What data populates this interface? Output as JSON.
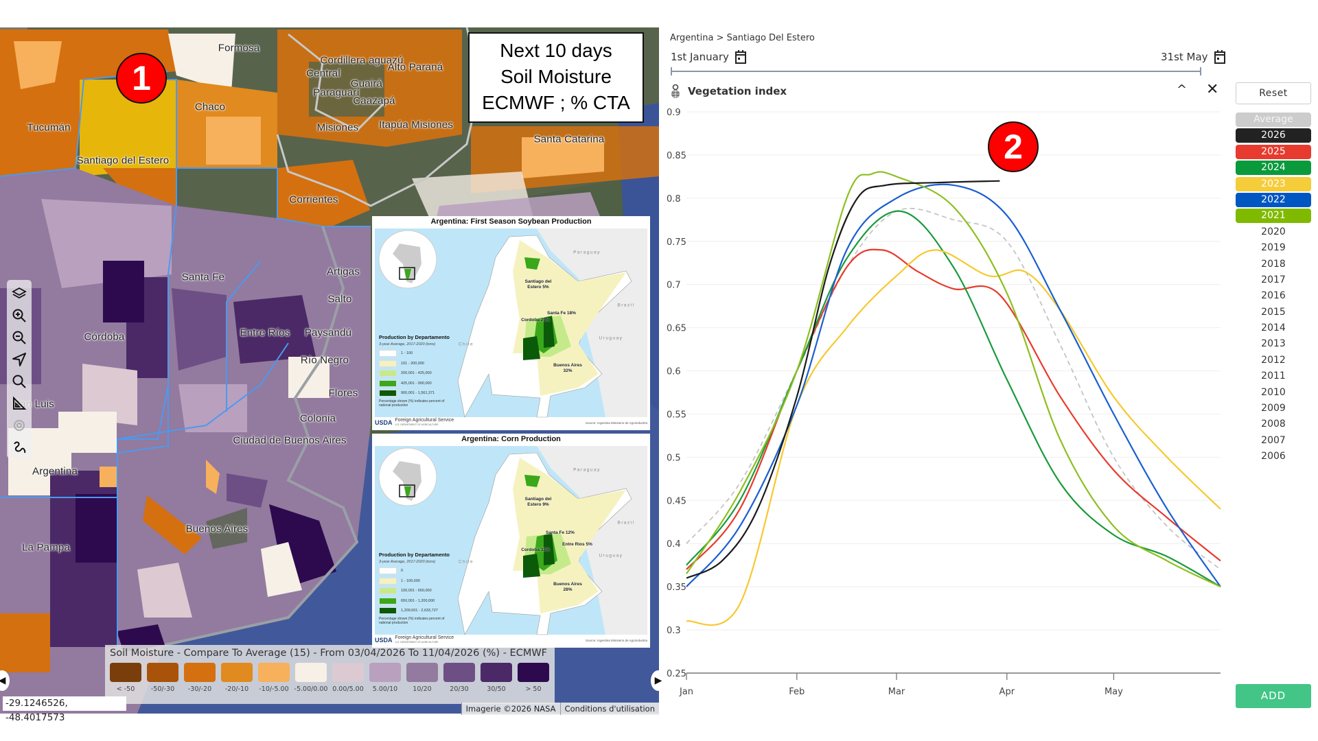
{
  "map": {
    "info_box": [
      "Next 10 days",
      "Soil Moisture",
      "ECMWF ; % CTA"
    ],
    "badge": "1",
    "labels": [
      "Formosa",
      "Cordillera aguazú",
      "Alto Paraná",
      "Central",
      "Guairá",
      "Paraguarí",
      "Caazapá",
      "Chaco",
      "Misiones",
      "Itapúa Misiones",
      "Tucumán",
      "Santa Catarina",
      "Santiago del Estero",
      "Corrientes",
      "Santa Fe",
      "Artigas",
      "Salto",
      "Córdoba",
      "Entre Ríos",
      "Paysandú",
      "Río Negro",
      "Flores",
      "Colonia",
      "Ciudad de Buenos Aires",
      "San Luis",
      "Argentina",
      "La Pampa",
      "Buenos Aires"
    ],
    "legend": {
      "title": "Soil Moisture - Compare To Average (15) - From 03/04/2026 To 11/04/2026 (%) - ECMWF",
      "classes": [
        {
          "label": "< -50",
          "color": "#7a3e0c"
        },
        {
          "label": "-50/-30",
          "color": "#a9530a"
        },
        {
          "label": "-30/-20",
          "color": "#d4700f"
        },
        {
          "label": "-20/-10",
          "color": "#e08a1f"
        },
        {
          "label": "-10/-5.00",
          "color": "#f7b05c"
        },
        {
          "label": "-5.00/0.00",
          "color": "#f7f0e6"
        },
        {
          "label": "0.00/5.00",
          "color": "#dcc9d2"
        },
        {
          "label": "5.00/10",
          "color": "#b9a0bf"
        },
        {
          "label": "10/20",
          "color": "#937a9f"
        },
        {
          "label": "20/30",
          "color": "#6e4f85"
        },
        {
          "label": "30/50",
          "color": "#4a2966"
        },
        {
          "label": "> 50",
          "color": "#2d0a4e"
        }
      ]
    },
    "coordinates": "-29.1246526, -48.4017573",
    "attribution": [
      "Imagerie ©2026 NASA",
      "Conditions d'utilisation"
    ],
    "insets": [
      {
        "title": "Argentina: First Season Soybean Production",
        "countries": [
          "Paraguay",
          "Brazil",
          "Uruguay",
          "Chile"
        ],
        "provinces": [
          "Santiago del Estero 5%",
          "Santa Fe 18%",
          "Cordoba 29%",
          "Buenos Aires 32%"
        ],
        "legend_title": "Production by Departamento",
        "legend_subtitle": "3-year Average, 2017-2020 (tons)",
        "classes": [
          {
            "label": "1 - 100",
            "color": "#ffffff"
          },
          {
            "label": "101 - 200,000",
            "color": "#f5f2c0"
          },
          {
            "label": "200,001 - 425,000",
            "color": "#c5ea8a"
          },
          {
            "label": "425,001 - 900,000",
            "color": "#3aa81a"
          },
          {
            "label": "900,001 - 1,561,371",
            "color": "#0a5a0a"
          }
        ],
        "note": "Percentage shown (%) indicates percent of national production",
        "usda": "USDA",
        "agency": "Foreign Agricultural Service",
        "department": "U.S. DEPARTMENT OF AGRICULTURE",
        "source": "Source: Argentina Ministerio de Agroindustria"
      },
      {
        "title": "Argentina: Corn Production",
        "countries": [
          "Paraguay",
          "Brazil",
          "Uruguay",
          "Chile"
        ],
        "provinces": [
          "Santiago del Estero 9%",
          "Santa Fe 12%",
          "Entre Rios 5%",
          "Cordoba 32%",
          "Buenos Aires 28%"
        ],
        "legend_title": "Production by Departamento",
        "legend_subtitle": "3-year Average, 2017-2020 (tons)",
        "classes": [
          {
            "label": "0",
            "color": "#ffffff"
          },
          {
            "label": "1 - 100,000",
            "color": "#f5f2c0"
          },
          {
            "label": "100,001 - 650,000",
            "color": "#c5ea8a"
          },
          {
            "label": "650,001 - 1,200,000",
            "color": "#3aa81a"
          },
          {
            "label": "1,200,001 - 2,633,727",
            "color": "#0a5a0a"
          }
        ],
        "note": "Percentage shown (%) indicates percent of national production",
        "usda": "USDA",
        "agency": "Foreign Agricultural Service",
        "department": "U.S. DEPARTMENT OF AGRICULTURE",
        "source": "Source: Argentina Ministerio de Agroindustria"
      }
    ]
  },
  "panel": {
    "breadcrumb": "Argentina > Santiago Del Estero",
    "start_date": "1st January",
    "end_date": "31st May",
    "title": "Vegetation index",
    "reset": "Reset",
    "add": "ADD",
    "badge": "2"
  },
  "chart_data": {
    "type": "line",
    "title": "Vegetation index",
    "xlabel": "",
    "ylabel": "",
    "x_unit": "day of year",
    "xlim": [
      0,
      150
    ],
    "ylim": [
      0.25,
      0.9
    ],
    "yticks": [
      0.9,
      0.85,
      0.8,
      0.75,
      0.7,
      0.65,
      0.6,
      0.55,
      0.5,
      0.45,
      0.4,
      0.35,
      0.3,
      0.25
    ],
    "xticks": [
      {
        "label": "Jan",
        "day": 0
      },
      {
        "label": "Feb",
        "day": 31
      },
      {
        "label": "Mar",
        "day": 59
      },
      {
        "label": "Apr",
        "day": 90
      },
      {
        "label": "May",
        "day": 120
      }
    ],
    "legend": [
      {
        "label": "Average",
        "color": "#cccccc",
        "active": true
      },
      {
        "label": "2026",
        "color": "#222222",
        "active": true
      },
      {
        "label": "2025",
        "color": "#e63b2e",
        "active": true
      },
      {
        "label": "2024",
        "color": "#0a9a3c",
        "active": true
      },
      {
        "label": "2023",
        "color": "#f5cc3a",
        "active": true
      },
      {
        "label": "2022",
        "color": "#0057c2",
        "active": true
      },
      {
        "label": "2021",
        "color": "#7fba00",
        "active": true
      },
      {
        "label": "2020"
      },
      {
        "label": "2019"
      },
      {
        "label": "2018"
      },
      {
        "label": "2017"
      },
      {
        "label": "2016"
      },
      {
        "label": "2015"
      },
      {
        "label": "2014"
      },
      {
        "label": "2013"
      },
      {
        "label": "2012"
      },
      {
        "label": "2011"
      },
      {
        "label": "2010"
      },
      {
        "label": "2009"
      },
      {
        "label": "2008"
      },
      {
        "label": "2007"
      },
      {
        "label": "2006"
      }
    ],
    "series": [
      {
        "name": "Average",
        "color": "#c4c4c4",
        "dashed": true,
        "points": [
          [
            0,
            0.4
          ],
          [
            15,
            0.47
          ],
          [
            31,
            0.6
          ],
          [
            45,
            0.72
          ],
          [
            59,
            0.785
          ],
          [
            75,
            0.775
          ],
          [
            90,
            0.75
          ],
          [
            105,
            0.63
          ],
          [
            120,
            0.5
          ],
          [
            135,
            0.42
          ],
          [
            150,
            0.37
          ]
        ]
      },
      {
        "name": "2025",
        "color": "#e8392c",
        "points": [
          [
            0,
            0.37
          ],
          [
            15,
            0.44
          ],
          [
            31,
            0.6
          ],
          [
            45,
            0.72
          ],
          [
            55,
            0.74
          ],
          [
            65,
            0.715
          ],
          [
            75,
            0.695
          ],
          [
            88,
            0.688
          ],
          [
            105,
            0.57
          ],
          [
            120,
            0.485
          ],
          [
            135,
            0.43
          ],
          [
            150,
            0.38
          ]
        ]
      },
      {
        "name": "2024",
        "color": "#1a9a3c",
        "points": [
          [
            0,
            0.375
          ],
          [
            15,
            0.45
          ],
          [
            31,
            0.6
          ],
          [
            45,
            0.73
          ],
          [
            60,
            0.785
          ],
          [
            75,
            0.72
          ],
          [
            90,
            0.59
          ],
          [
            105,
            0.47
          ],
          [
            120,
            0.41
          ],
          [
            135,
            0.385
          ],
          [
            150,
            0.35
          ]
        ]
      },
      {
        "name": "2023",
        "color": "#f7c82e",
        "points": [
          [
            0,
            0.31
          ],
          [
            15,
            0.33
          ],
          [
            31,
            0.56
          ],
          [
            45,
            0.65
          ],
          [
            59,
            0.71
          ],
          [
            70,
            0.74
          ],
          [
            85,
            0.71
          ],
          [
            95,
            0.715
          ],
          [
            105,
            0.67
          ],
          [
            120,
            0.57
          ],
          [
            135,
            0.5
          ],
          [
            150,
            0.44
          ]
        ]
      },
      {
        "name": "2022",
        "color": "#1a5fd0",
        "points": [
          [
            0,
            0.35
          ],
          [
            15,
            0.42
          ],
          [
            31,
            0.56
          ],
          [
            45,
            0.74
          ],
          [
            59,
            0.8
          ],
          [
            75,
            0.815
          ],
          [
            90,
            0.78
          ],
          [
            105,
            0.67
          ],
          [
            120,
            0.55
          ],
          [
            135,
            0.44
          ],
          [
            150,
            0.35
          ]
        ]
      },
      {
        "name": "2021",
        "color": "#8cbf1f",
        "points": [
          [
            0,
            0.365
          ],
          [
            15,
            0.46
          ],
          [
            31,
            0.6
          ],
          [
            45,
            0.8
          ],
          [
            52,
            0.828
          ],
          [
            59,
            0.825
          ],
          [
            75,
            0.79
          ],
          [
            90,
            0.69
          ],
          [
            105,
            0.52
          ],
          [
            120,
            0.42
          ],
          [
            135,
            0.38
          ],
          [
            150,
            0.35
          ]
        ]
      },
      {
        "name": "2026",
        "color": "#1a1a1a",
        "points": [
          [
            0,
            0.36
          ],
          [
            10,
            0.38
          ],
          [
            20,
            0.44
          ],
          [
            31,
            0.57
          ],
          [
            40,
            0.72
          ],
          [
            48,
            0.8
          ],
          [
            56,
            0.815
          ],
          [
            70,
            0.818
          ],
          [
            88,
            0.82
          ]
        ]
      }
    ]
  }
}
